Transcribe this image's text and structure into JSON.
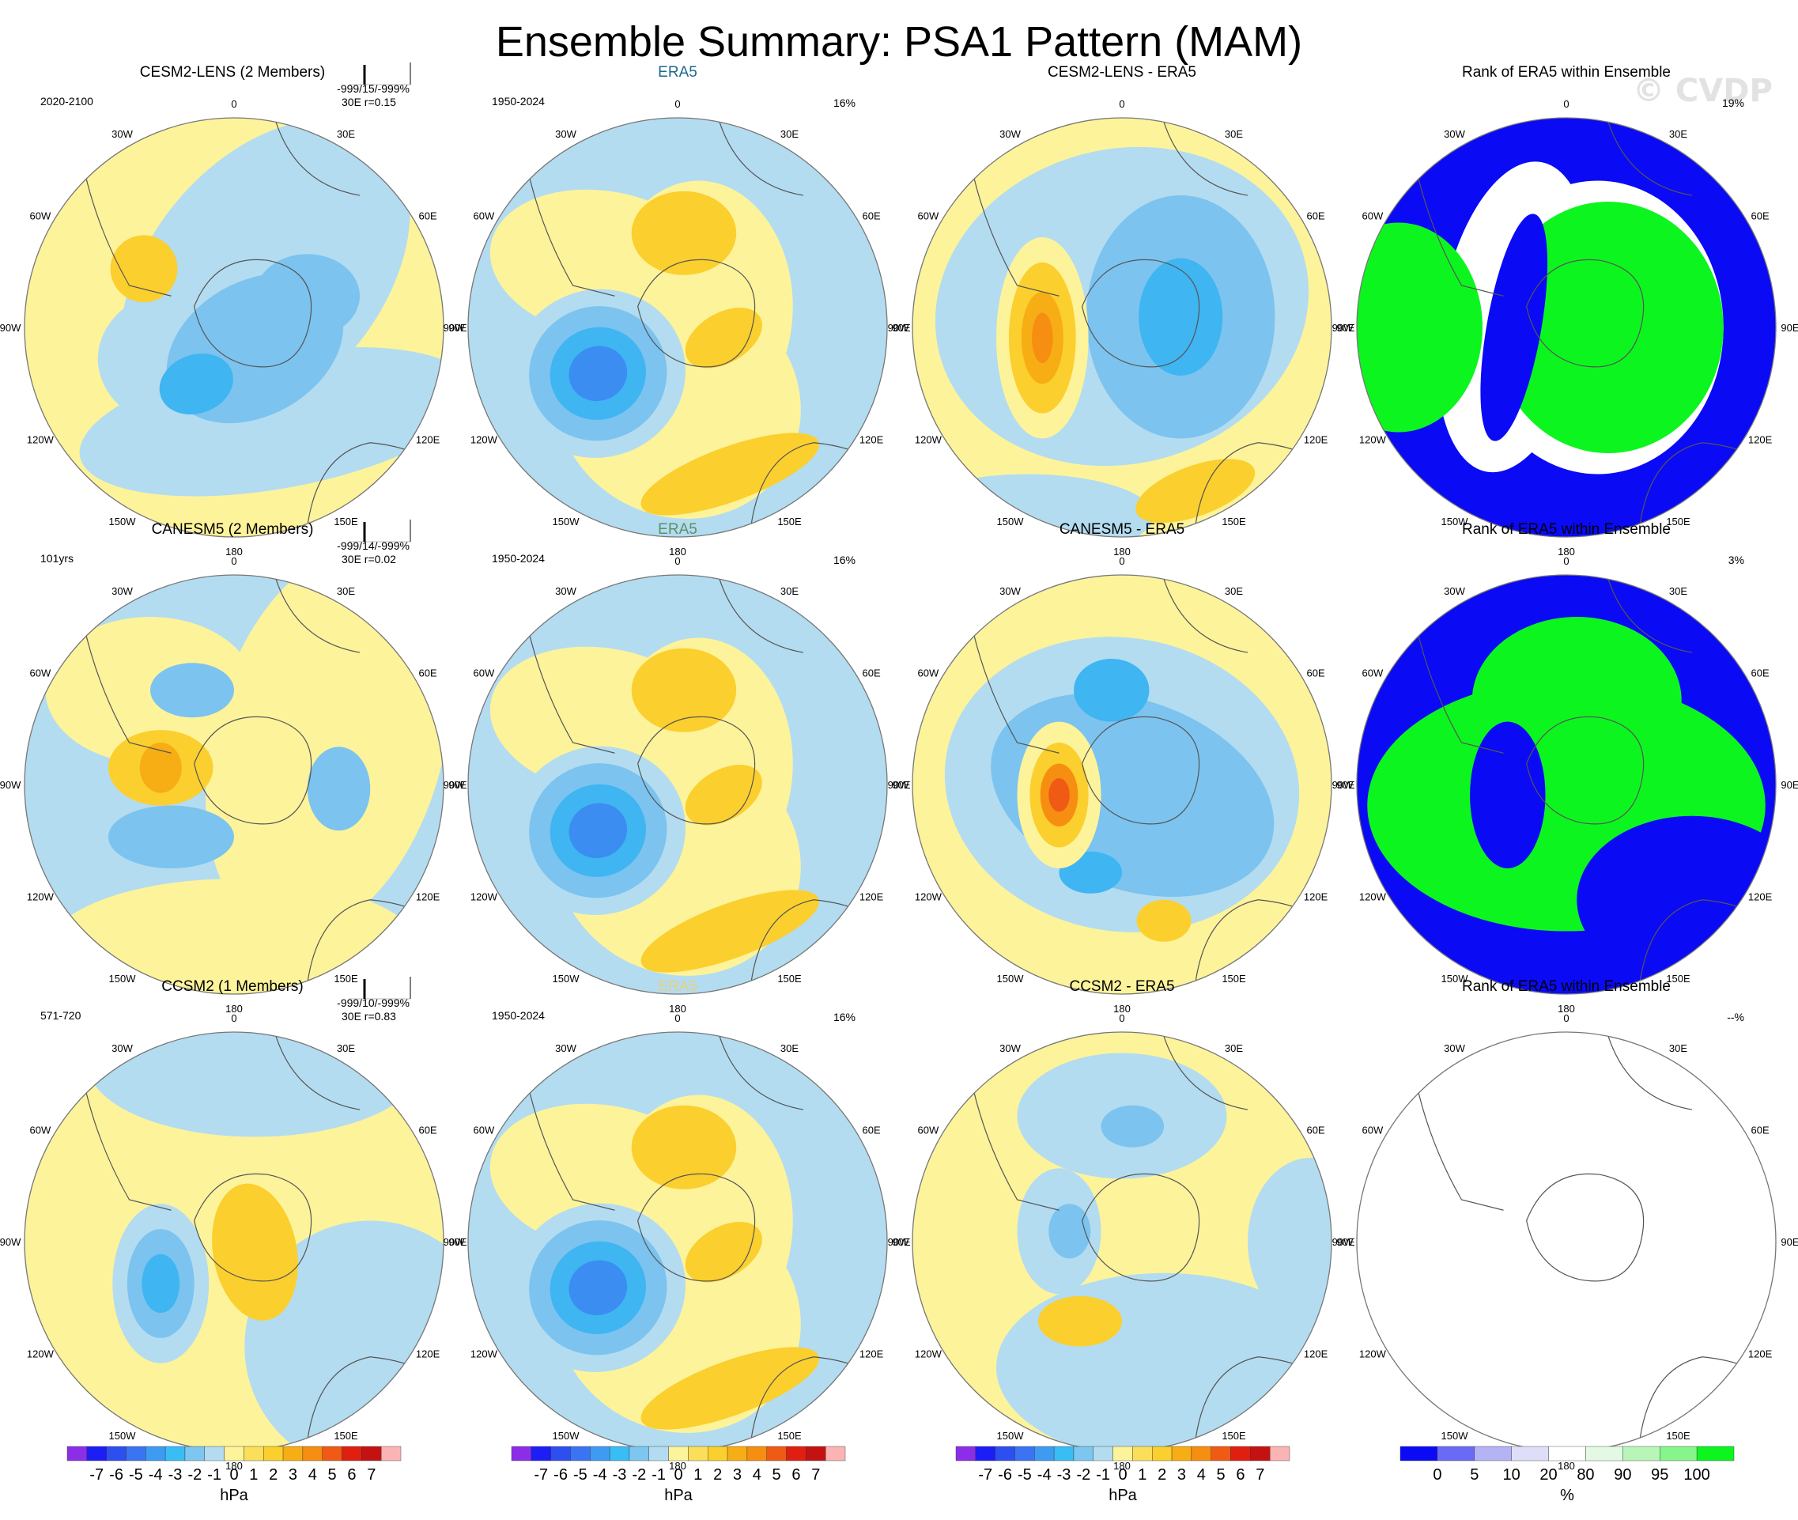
{
  "title": "Ensemble Summary: PSA1 Pattern (MAM)",
  "watermark": "© CVDP",
  "longitude_labels": [
    "0",
    "30E",
    "60E",
    "90E",
    "120E",
    "150E",
    "180",
    "150W",
    "120W",
    "90W",
    "60W",
    "30W"
  ],
  "colors": {
    "ocean_light": "#b3dcf0",
    "neg1": "#b3dcf0",
    "neg2": "#7cc3ef",
    "neg3": "#3fb5f2",
    "neg4": "#3b8df2",
    "pos1": "#fdf39b",
    "pos2": "#fbcf2e",
    "pos3": "#f7ad14",
    "pos4": "#f68e12",
    "pos5": "#ef5a15",
    "rank_low": "#0a0af5",
    "rank_mid": "#ffffff",
    "rank_high": "#0df51f",
    "cesm_title": "#1b6891",
    "canesm_title": "#5f8f64",
    "ccsm_title": "#e8cf82"
  },
  "chart_data": [
    {
      "type": "heatmap",
      "row": 1,
      "col": 1,
      "title": "CESM2-LENS (2 Members)",
      "period": "2020-2100",
      "stats": "-999/15/-999%",
      "stats2": "30E r=0.15",
      "pct": "",
      "units": "hPa"
    },
    {
      "type": "heatmap",
      "row": 1,
      "col": 2,
      "title": "ERA5",
      "period": "1950-2024",
      "stats": "",
      "stats2": "",
      "pct": "16%",
      "units": "hPa"
    },
    {
      "type": "heatmap",
      "row": 1,
      "col": 3,
      "title": "CESM2-LENS - ERA5",
      "period": "",
      "stats": "",
      "stats2": "",
      "pct": "",
      "units": "hPa"
    },
    {
      "type": "heatmap",
      "row": 1,
      "col": 4,
      "title": "Rank of ERA5 within Ensemble",
      "period": "",
      "stats": "",
      "stats2": "",
      "pct": "19%",
      "units": "%"
    },
    {
      "type": "heatmap",
      "row": 2,
      "col": 1,
      "title": "CANESM5 (2 Members)",
      "period": "101yrs",
      "stats": "-999/14/-999%",
      "stats2": "30E r=0.02",
      "pct": "",
      "units": "hPa"
    },
    {
      "type": "heatmap",
      "row": 2,
      "col": 2,
      "title": "ERA5",
      "period": "1950-2024",
      "stats": "",
      "stats2": "",
      "pct": "16%",
      "units": "hPa"
    },
    {
      "type": "heatmap",
      "row": 2,
      "col": 3,
      "title": "CANESM5 - ERA5",
      "period": "",
      "stats": "",
      "stats2": "",
      "pct": "",
      "units": "hPa"
    },
    {
      "type": "heatmap",
      "row": 2,
      "col": 4,
      "title": "Rank of ERA5 within Ensemble",
      "period": "",
      "stats": "",
      "stats2": "",
      "pct": "3%",
      "units": "%"
    },
    {
      "type": "heatmap",
      "row": 3,
      "col": 1,
      "title": "CCSM2 (1 Members)",
      "period": "571-720",
      "stats": "-999/10/-999%",
      "stats2": "30E r=0.83",
      "pct": "",
      "units": "hPa"
    },
    {
      "type": "heatmap",
      "row": 3,
      "col": 2,
      "title": "ERA5",
      "period": "1950-2024",
      "stats": "",
      "stats2": "",
      "pct": "16%",
      "units": "hPa"
    },
    {
      "type": "heatmap",
      "row": 3,
      "col": 3,
      "title": "CCSM2 - ERA5",
      "period": "",
      "stats": "",
      "stats2": "",
      "pct": "",
      "units": "hPa"
    },
    {
      "type": "heatmap",
      "row": 3,
      "col": 4,
      "title": "Rank of ERA5 within Ensemble",
      "period": "",
      "stats": "",
      "stats2": "",
      "pct": "--%",
      "units": "%"
    }
  ],
  "colorbars": [
    {
      "units": "hPa",
      "labels": [
        "-7",
        "-6",
        "-5",
        "-4",
        "-3",
        "-2",
        "-1",
        "0",
        "1",
        "2",
        "3",
        "4",
        "5",
        "6",
        "7"
      ],
      "colors": [
        "#8c2ee8",
        "#1d1df5",
        "#2d4ff0",
        "#3b74f2",
        "#3f9bf2",
        "#38bdf5",
        "#7cc6ef",
        "#b3dcf0",
        "#fdf39b",
        "#fbdf5a",
        "#fbcf2e",
        "#f7ad14",
        "#f68e12",
        "#ef5a15",
        "#e01f10",
        "#c41212",
        "#fbb3b3"
      ]
    },
    {
      "units": "hPa",
      "labels": [
        "-7",
        "-6",
        "-5",
        "-4",
        "-3",
        "-2",
        "-1",
        "0",
        "1",
        "2",
        "3",
        "4",
        "5",
        "6",
        "7"
      ],
      "colors": [
        "#8c2ee8",
        "#1d1df5",
        "#2d4ff0",
        "#3b74f2",
        "#3f9bf2",
        "#38bdf5",
        "#7cc6ef",
        "#b3dcf0",
        "#fdf39b",
        "#fbdf5a",
        "#fbcf2e",
        "#f7ad14",
        "#f68e12",
        "#ef5a15",
        "#e01f10",
        "#c41212",
        "#fbb3b3"
      ]
    },
    {
      "units": "hPa",
      "labels": [
        "-7",
        "-6",
        "-5",
        "-4",
        "-3",
        "-2",
        "-1",
        "0",
        "1",
        "2",
        "3",
        "4",
        "5",
        "6",
        "7"
      ],
      "colors": [
        "#8c2ee8",
        "#1d1df5",
        "#2d4ff0",
        "#3b74f2",
        "#3f9bf2",
        "#38bdf5",
        "#7cc6ef",
        "#b3dcf0",
        "#fdf39b",
        "#fbdf5a",
        "#fbcf2e",
        "#f7ad14",
        "#f68e12",
        "#ef5a15",
        "#e01f10",
        "#c41212",
        "#fbb3b3"
      ]
    },
    {
      "units": "%",
      "labels": [
        "0",
        "5",
        "10",
        "20",
        "80",
        "90",
        "95",
        "100"
      ],
      "colors": [
        "#0a0af5",
        "#6a6af5",
        "#b3b3f5",
        "#dedef8",
        "#ffffff",
        "#e3f9e3",
        "#b9f5b9",
        "#86f58c",
        "#0df51f"
      ]
    }
  ]
}
